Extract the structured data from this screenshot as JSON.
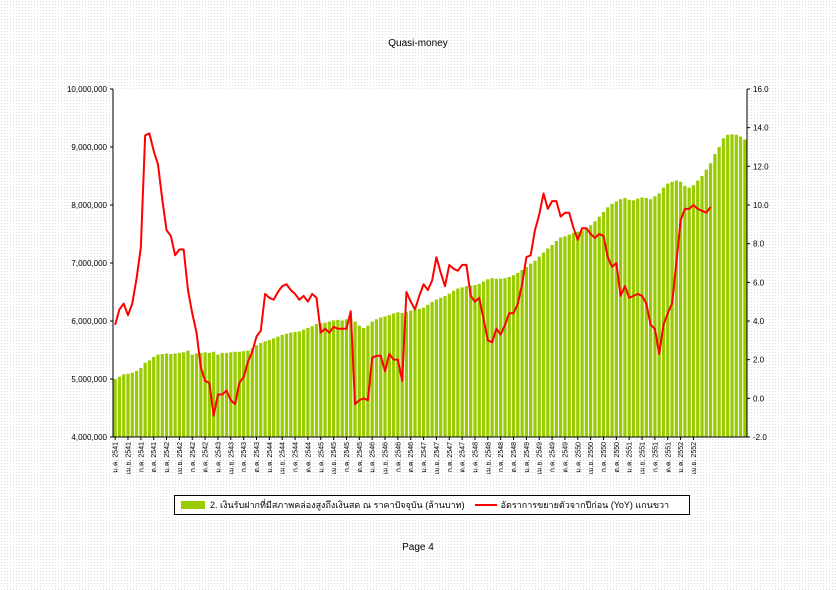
{
  "page": {
    "footer": "Page 4"
  },
  "legend": {
    "bar_label": "2. เงินรับฝากที่มีสภาพคล่องสูงถึงเงินสด ณ ราคาปัจจุบัน (ล้านบาท)",
    "line_label": "อัตราการขยายตัวจากปีก่อน (YoY) แกนขวา"
  },
  "chart_data": {
    "type": "bar+line",
    "title": "Quasi-money",
    "left_axis": {
      "min": 4000000,
      "max": 10000000,
      "ticks": [
        "4,000,000",
        "5,000,000",
        "6,000,000",
        "7,000,000",
        "8,000,000",
        "9,000,000",
        "10,000,000"
      ]
    },
    "right_axis": {
      "min": -2.0,
      "max": 16.0,
      "ticks": [
        "-2.0",
        "0.0",
        "2.0",
        "4.0",
        "6.0",
        "8.0",
        "10.0",
        "12.0",
        "14.0",
        "16.0"
      ]
    },
    "x_tick_labels": [
      "ม.ค. 2541",
      "เม.ย. 2541",
      "ก.ค. 2541",
      "ต.ค. 2541",
      "ม.ค. 2542",
      "เม.ย. 2542",
      "ก.ค. 2542",
      "ต.ค. 2542",
      "ม.ค. 2543",
      "เม.ย. 2543",
      "ก.ค. 2543",
      "ต.ค. 2543",
      "ม.ค. 2544",
      "เม.ย. 2544",
      "ก.ค. 2544",
      "ต.ค. 2544",
      "ม.ค. 2545",
      "เม.ย. 2545",
      "ก.ค. 2545",
      "ต.ค. 2545",
      "ม.ค. 2546",
      "เม.ย. 2546",
      "ก.ค. 2546",
      "ต.ค. 2546",
      "ม.ค. 2547",
      "เม.ย. 2547",
      "ก.ค. 2547",
      "ต.ค. 2547",
      "ม.ค. 2548",
      "เม.ย. 2548",
      "ก.ค. 2548",
      "ต.ค. 2548",
      "ม.ค. 2549",
      "เม.ย. 2549",
      "ก.ค. 2549",
      "ต.ค. 2549",
      "ม.ค. 2550",
      "เม.ย. 2550",
      "ก.ค. 2550",
      "ต.ค. 2550",
      "ม.ค. 2551",
      "เม.ย. 2551",
      "ก.ค. 2551",
      "ต.ค. 2551",
      "ม.ค. 2552",
      "เม.ย. 2552"
    ],
    "series": [
      {
        "name": "2. เงินรับฝากที่มีสภาพคล่องสูงถึงเงินสด ณ ราคาปัจจุบัน (ล้านบาท)",
        "type": "bar",
        "axis": "left",
        "color": "#99cc00",
        "values": [
          5000000,
          5040000,
          5080000,
          5090000,
          5110000,
          5140000,
          5190000,
          5280000,
          5320000,
          5380000,
          5420000,
          5430000,
          5440000,
          5430000,
          5440000,
          5450000,
          5460000,
          5490000,
          5420000,
          5440000,
          5450000,
          5460000,
          5450000,
          5470000,
          5420000,
          5450000,
          5450000,
          5460000,
          5470000,
          5470000,
          5480000,
          5490000,
          5530000,
          5580000,
          5620000,
          5650000,
          5670000,
          5700000,
          5730000,
          5760000,
          5780000,
          5800000,
          5810000,
          5820000,
          5850000,
          5880000,
          5910000,
          5950000,
          5960000,
          5970000,
          5990000,
          6010000,
          6020000,
          6010000,
          6030000,
          6050000,
          5990000,
          5920000,
          5880000,
          5920000,
          5990000,
          6030000,
          6060000,
          6080000,
          6100000,
          6130000,
          6150000,
          6140000,
          6160000,
          6180000,
          6200000,
          6210000,
          6230000,
          6280000,
          6330000,
          6370000,
          6400000,
          6430000,
          6470000,
          6520000,
          6560000,
          6580000,
          6600000,
          6610000,
          6620000,
          6640000,
          6680000,
          6720000,
          6740000,
          6730000,
          6730000,
          6740000,
          6760000,
          6790000,
          6830000,
          6880000,
          6930000,
          6990000,
          7040000,
          7110000,
          7180000,
          7250000,
          7310000,
          7380000,
          7440000,
          7460000,
          7490000,
          7520000,
          7540000,
          7560000,
          7600000,
          7650000,
          7720000,
          7800000,
          7880000,
          7960000,
          8020000,
          8060000,
          8100000,
          8120000,
          8090000,
          8080000,
          8110000,
          8130000,
          8120000,
          8100000,
          8150000,
          8200000,
          8300000,
          8370000,
          8400000,
          8420000,
          8400000,
          8330000,
          8300000,
          8340000,
          8420000,
          8500000,
          8610000,
          8720000,
          8880000,
          9000000,
          9150000,
          9210000,
          9220000,
          9210000,
          9180000,
          9130000
        ]
      },
      {
        "name": "อัตราการขยายตัวจากปีก่อน (YoY) แกนขวา",
        "type": "line",
        "axis": "right",
        "color": "#ff0000",
        "values": [
          3.8,
          4.6,
          4.9,
          4.3,
          4.9,
          6.2,
          7.8,
          13.6,
          13.7,
          12.8,
          12.1,
          10.3,
          8.7,
          8.4,
          7.4,
          7.7,
          7.7,
          5.6,
          4.4,
          3.4,
          1.6,
          0.9,
          0.8,
          -0.9,
          0.2,
          0.2,
          0.4,
          -0.1,
          -0.3,
          0.8,
          1.1,
          1.9,
          2.4,
          3.2,
          3.5,
          5.4,
          5.2,
          5.1,
          5.5,
          5.8,
          5.9,
          5.6,
          5.4,
          5.1,
          5.3,
          5.0,
          5.4,
          5.2,
          3.4,
          3.6,
          3.4,
          3.7,
          3.6,
          3.6,
          3.6,
          4.5,
          -0.3,
          -0.1,
          0.0,
          -0.1,
          2.1,
          2.2,
          2.2,
          1.4,
          2.3,
          2.0,
          2.0,
          0.9,
          5.5,
          5.0,
          4.6,
          5.3,
          5.9,
          5.6,
          6.1,
          7.3,
          6.5,
          5.8,
          6.9,
          6.7,
          6.6,
          6.9,
          6.9,
          5.3,
          5.0,
          5.2,
          4.1,
          3.0,
          2.9,
          3.6,
          3.3,
          3.8,
          4.4,
          4.4,
          4.9,
          5.9,
          7.3,
          7.4,
          8.7,
          9.5,
          10.6,
          9.8,
          10.2,
          10.2,
          9.4,
          9.6,
          9.6,
          8.8,
          8.2,
          8.8,
          8.8,
          8.5,
          8.3,
          8.5,
          8.4,
          7.3,
          6.8,
          7.0,
          5.3,
          5.8,
          5.2,
          5.3,
          5.4,
          5.3,
          4.9,
          3.8,
          3.6,
          2.3,
          3.8,
          4.4,
          4.9,
          7.0,
          9.2,
          9.8,
          9.8,
          10.0,
          9.8,
          9.7,
          9.6,
          9.9
        ]
      }
    ],
    "grid": false,
    "legend_position": "bottom"
  }
}
